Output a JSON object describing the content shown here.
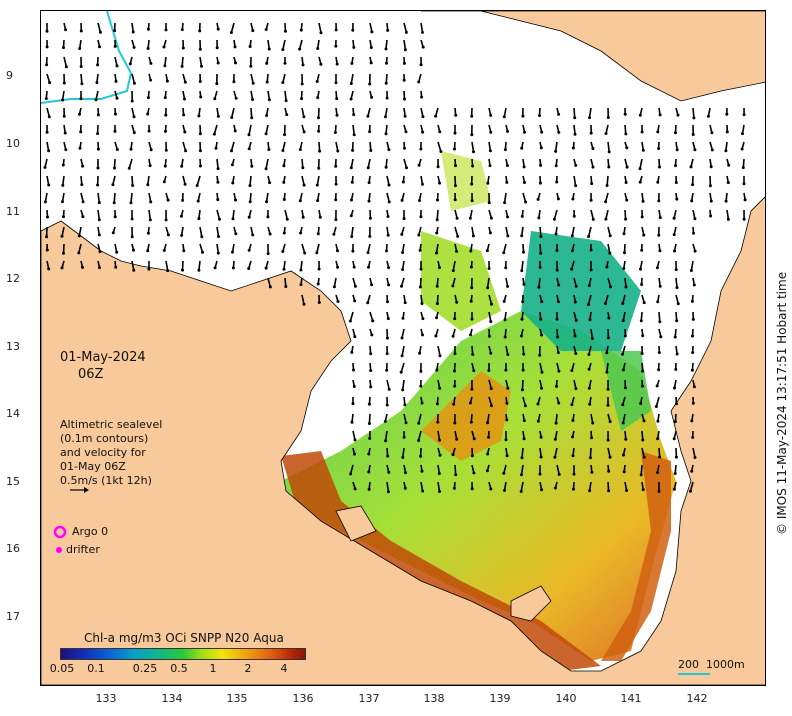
{
  "map": {
    "date": "01-May-2024",
    "time": "06Z",
    "lat_ticks": [
      "9",
      "10",
      "11",
      "12",
      "13",
      "14",
      "15",
      "16",
      "17"
    ],
    "lon_ticks": [
      "133",
      "134",
      "135",
      "136",
      "137",
      "138",
      "139",
      "140",
      "141",
      "142"
    ],
    "colors": {
      "land": "#f8c99a",
      "ocean": "#ffffff",
      "eez_line": "#22c8d8",
      "argo": "#ff00ff"
    }
  },
  "legend": {
    "line1": "Altimetric sealevel",
    "line2": "(0.1m contours)",
    "line3": "and velocity for",
    "line4": "01-May 06Z",
    "line5": "0.5m/s (1kt 12h)",
    "argo_label": "Argo 0",
    "drifter_label": "drifter"
  },
  "colorbar": {
    "title": "Chl-a mg/m3 OCi SNPP N20 Aqua",
    "ticks": [
      "0.05",
      "0.1",
      "0.25",
      "0.5",
      "1",
      "2",
      "4"
    ],
    "scale_label": "200  1000m"
  },
  "copyright": "© IMOS 11-May-2024 13:17:51 Hobart time"
}
